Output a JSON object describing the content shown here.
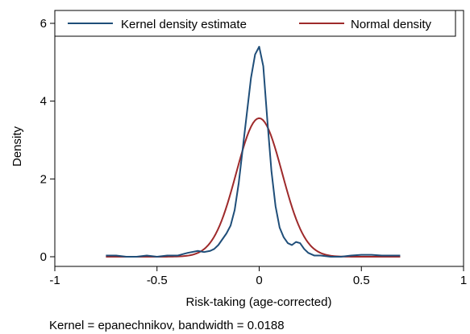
{
  "chart_data": {
    "type": "line",
    "xlabel": "Risk-taking (age-corrected)",
    "ylabel": "Density",
    "note": "Kernel = epanechnikov, bandwidth = 0.0188",
    "xlim": [
      -1,
      1
    ],
    "ylim": [
      0,
      6
    ],
    "xticks": [
      -1,
      -0.5,
      0,
      0.5,
      1
    ],
    "xtick_labels": [
      "-1",
      "-0.5",
      "0",
      "0.5",
      "1"
    ],
    "yticks": [
      0,
      2,
      4,
      6
    ],
    "ytick_labels": [
      "0",
      "2",
      "4",
      "6"
    ],
    "grid": false,
    "legend_position": "top",
    "series": [
      {
        "name": "Kernel density estimate",
        "color": "#1f4e79",
        "x": [
          -0.75,
          -0.7,
          -0.65,
          -0.6,
          -0.55,
          -0.5,
          -0.45,
          -0.4,
          -0.35,
          -0.3,
          -0.27,
          -0.24,
          -0.22,
          -0.2,
          -0.18,
          -0.16,
          -0.14,
          -0.12,
          -0.1,
          -0.08,
          -0.06,
          -0.04,
          -0.02,
          0.0,
          0.02,
          0.04,
          0.06,
          0.08,
          0.1,
          0.12,
          0.14,
          0.16,
          0.18,
          0.2,
          0.22,
          0.24,
          0.27,
          0.3,
          0.35,
          0.4,
          0.45,
          0.5,
          0.55,
          0.6,
          0.65,
          0.69
        ],
        "values": [
          0.03,
          0.03,
          0.0,
          0.0,
          0.03,
          0.0,
          0.03,
          0.03,
          0.1,
          0.15,
          0.12,
          0.15,
          0.2,
          0.3,
          0.45,
          0.6,
          0.8,
          1.2,
          1.9,
          2.8,
          3.7,
          4.6,
          5.2,
          5.4,
          4.9,
          3.5,
          2.2,
          1.3,
          0.75,
          0.5,
          0.35,
          0.3,
          0.38,
          0.35,
          0.2,
          0.1,
          0.03,
          0.03,
          0.0,
          0.0,
          0.03,
          0.05,
          0.05,
          0.03,
          0.03,
          0.03
        ]
      },
      {
        "name": "Normal density",
        "color": "#9e2a2b",
        "mean": 0.0,
        "sd": 0.112,
        "x_range": [
          -0.75,
          0.69
        ]
      }
    ]
  }
}
